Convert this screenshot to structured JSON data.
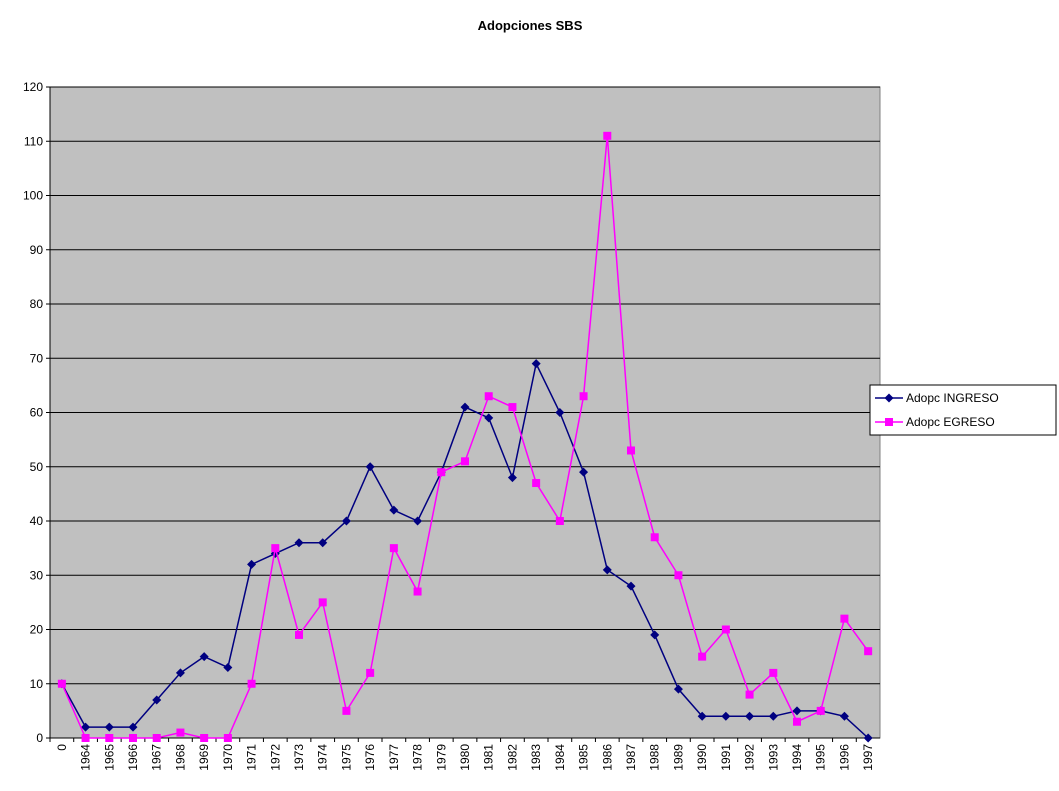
{
  "chart_data": {
    "type": "line",
    "title": "Adopciones SBS",
    "categories": [
      "0",
      "1964",
      "1965",
      "1966",
      "1967",
      "1968",
      "1969",
      "1970",
      "1971",
      "1972",
      "1973",
      "1974",
      "1975",
      "1976",
      "1977",
      "1978",
      "1979",
      "1980",
      "1981",
      "1982",
      "1983",
      "1984",
      "1985",
      "1986",
      "1987",
      "1988",
      "1989",
      "1990",
      "1991",
      "1992",
      "1993",
      "1994",
      "1995",
      "1996",
      "1997"
    ],
    "series": [
      {
        "name": "Adopc INGRESO",
        "color": "#000080",
        "marker": "diamond",
        "values": [
          10,
          2,
          2,
          2,
          7,
          12,
          15,
          13,
          32,
          34,
          36,
          36,
          40,
          50,
          42,
          40,
          49,
          61,
          59,
          48,
          69,
          60,
          49,
          31,
          28,
          19,
          9,
          4,
          4,
          4,
          4,
          5,
          5,
          4,
          0
        ]
      },
      {
        "name": "Adopc EGRESO",
        "color": "#ff00ff",
        "marker": "square",
        "values": [
          10,
          0,
          0,
          0,
          0,
          1,
          0,
          0,
          10,
          35,
          19,
          25,
          5,
          12,
          35,
          27,
          49,
          51,
          63,
          61,
          47,
          40,
          63,
          111,
          53,
          37,
          30,
          15,
          20,
          8,
          12,
          3,
          5,
          22,
          16
        ]
      }
    ],
    "ylim": [
      0,
      120
    ],
    "yticks": [
      0,
      10,
      20,
      30,
      40,
      50,
      60,
      70,
      80,
      90,
      100,
      110,
      120
    ],
    "grid": true,
    "legend": "right"
  }
}
